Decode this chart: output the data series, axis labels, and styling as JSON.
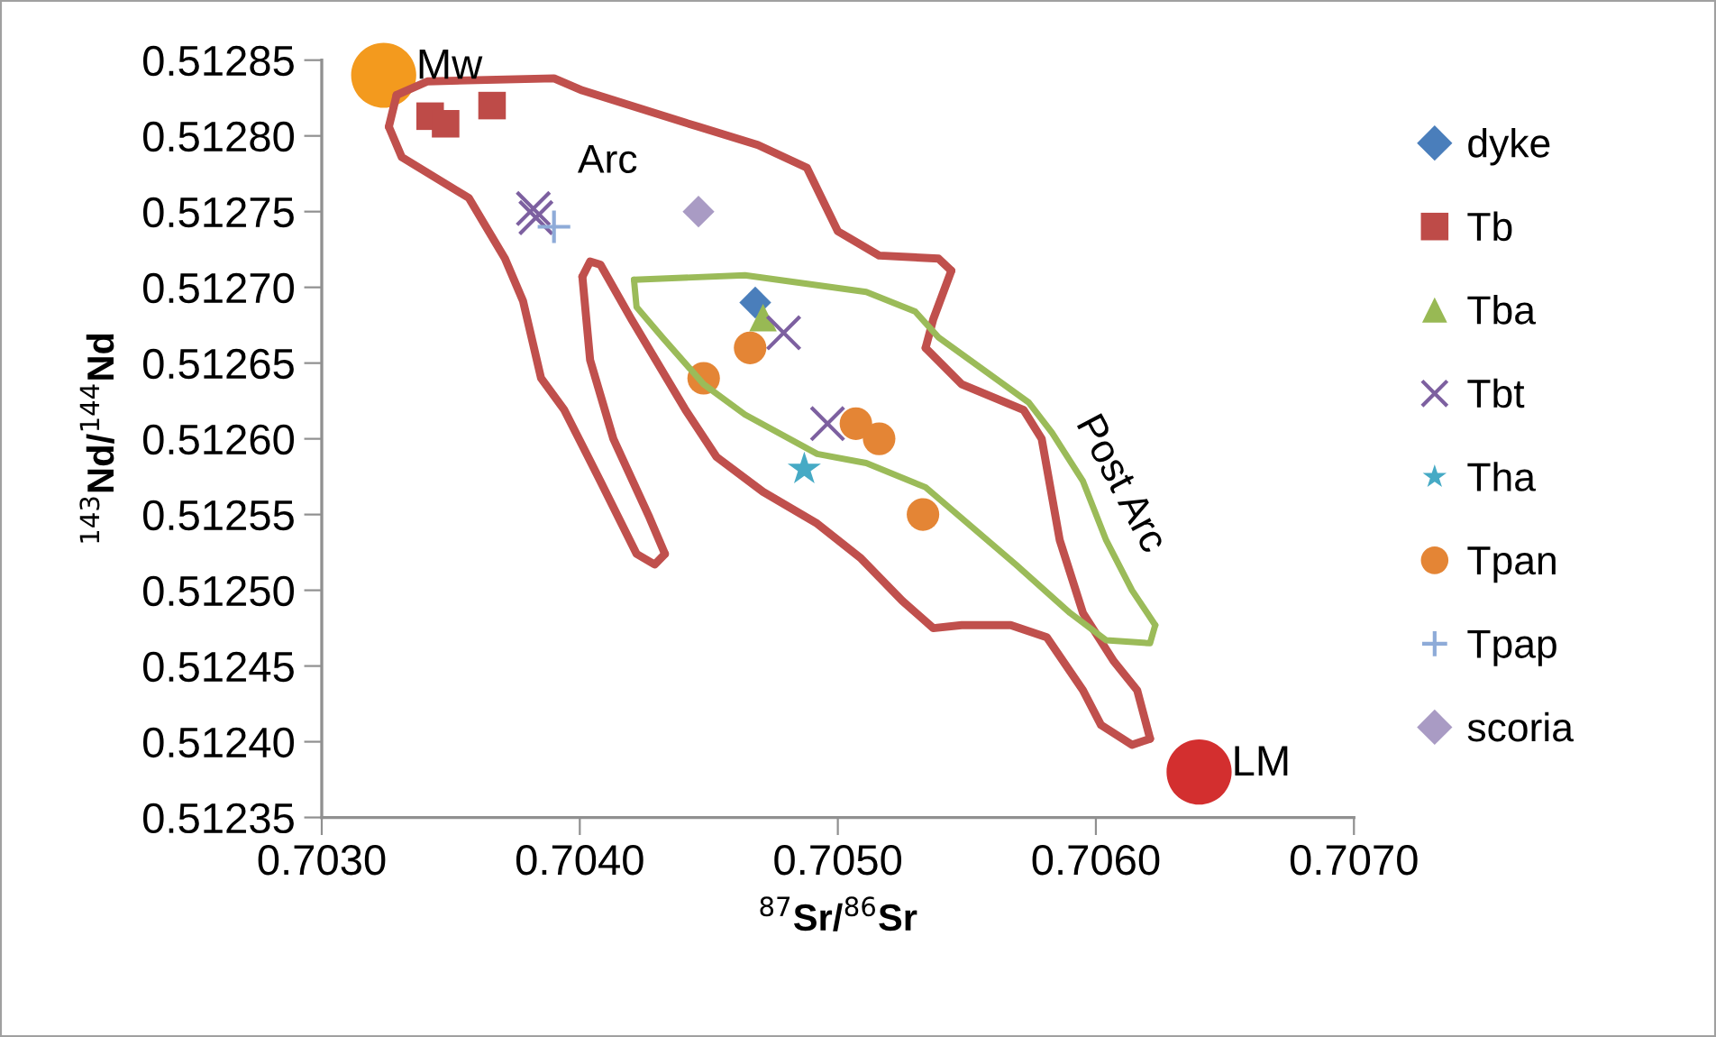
{
  "chart_data": {
    "type": "scatter",
    "xlabel": "$^{87}$Sr/$^{86}$Sr",
    "ylabel": "$^{143}$Nd/$^{144}$Nd",
    "xlim": [
      0.703,
      0.707
    ],
    "xticks": [
      {
        "value": 0.703,
        "label": "0.7030"
      },
      {
        "value": 0.704,
        "label": "0.7040"
      },
      {
        "value": 0.705,
        "label": "0.7050"
      },
      {
        "value": 0.706,
        "label": "0.7060"
      },
      {
        "value": 0.707,
        "label": "0.7070"
      }
    ],
    "ylim": [
      0.51235,
      0.51285
    ],
    "yticks": [
      {
        "value": 0.51235,
        "label": "0.51235"
      },
      {
        "value": 0.5124,
        "label": "0.51240"
      },
      {
        "value": 0.51245,
        "label": "0.51245"
      },
      {
        "value": 0.5125,
        "label": "0.51250"
      },
      {
        "value": 0.51255,
        "label": "0.51255"
      },
      {
        "value": 0.5126,
        "label": "0.51260"
      },
      {
        "value": 0.51265,
        "label": "0.51265"
      },
      {
        "value": 0.5127,
        "label": "0.51270"
      },
      {
        "value": 0.51275,
        "label": "0.51275"
      },
      {
        "value": 0.5128,
        "label": "0.51280"
      },
      {
        "value": 0.51285,
        "label": "0.51285"
      }
    ],
    "grid": false,
    "legend": "right",
    "annotations": [
      "Arc",
      "Post Arc",
      {
        "text": "Mw",
        "x": 0.70324,
        "y": 0.51284
      },
      {
        "text": "LM",
        "x": 0.7064,
        "y": 0.51238
      }
    ],
    "series": [
      {
        "type": "line",
        "color": "#c0504d",
        "marker": "none",
        "line_style": "solid",
        "x": [
          0.70329,
          0.70341,
          0.7039,
          0.70401,
          0.70446,
          0.70469,
          0.70488,
          0.705,
          0.70516,
          0.70539,
          0.70544
        ],
        "values": [
          0.512827,
          0.512836,
          0.512838,
          0.51283,
          0.512806,
          0.512794,
          0.512779,
          0.512737,
          0.512721,
          0.512719,
          0.512711
        ]
      },
      {
        "type": "line",
        "color": "#c0504d",
        "marker": "none",
        "line_style": "solid",
        "x": [
          0.70544,
          0.70537,
          0.70534
        ],
        "values": [
          0.512711,
          0.512679,
          0.51266
        ]
      },
      {
        "type": "line",
        "color": "#c0504d",
        "marker": "none",
        "line_style": "solid",
        "x": [
          0.70534,
          0.70548,
          0.70572,
          0.70579,
          0.70586,
          0.70595,
          0.70607,
          0.70616,
          0.70621
        ],
        "values": [
          0.51266,
          0.512636,
          0.512619,
          0.5126,
          0.512533,
          0.512485,
          0.512453,
          0.512434,
          0.512402
        ]
      },
      {
        "type": "line",
        "color": "#c0504d",
        "marker": "none",
        "line_style": "solid",
        "x": [
          0.70621,
          0.70614,
          0.70602,
          0.70595,
          0.70581,
          0.70567,
          0.70548,
          0.70537,
          0.70525,
          0.70509,
          0.70492,
          0.70471,
          0.70453,
          0.70441,
          0.7042,
          0.70408,
          0.70404,
          0.70401
        ],
        "values": [
          0.512402,
          0.512398,
          0.512411,
          0.512434,
          0.512469,
          0.512477,
          0.512477,
          0.512475,
          0.512493,
          0.512521,
          0.512544,
          0.512565,
          0.512588,
          0.512619,
          0.512679,
          0.512715,
          0.512717,
          0.512707
        ]
      },
      {
        "type": "line",
        "color": "#c0504d",
        "marker": "none",
        "line_style": "solid",
        "x": [
          0.70401,
          0.70404,
          0.70413,
          0.70427,
          0.70433
        ],
        "values": [
          0.512707,
          0.512652,
          0.5126,
          0.512548,
          0.512524
        ]
      },
      {
        "type": "line",
        "color": "#c0504d",
        "marker": "none",
        "line_style": "solid",
        "x": [
          0.70433,
          0.70429,
          0.70422,
          0.70408,
          0.70394,
          0.70385,
          0.70378,
          0.70371,
          0.70357,
          0.70331,
          0.70326
        ],
        "values": [
          0.512524,
          0.512517,
          0.512524,
          0.512572,
          0.512619,
          0.51264,
          0.512691,
          0.512719,
          0.512759,
          0.512786,
          0.512806
        ]
      },
      {
        "type": "line",
        "color": "#c0504d",
        "marker": "none",
        "line_style": "solid",
        "x": [
          0.70326,
          0.70329
        ],
        "values": [
          0.512806,
          0.512827
        ]
      },
      {
        "type": "line",
        "color": "#9bbb59",
        "marker": "none",
        "line_style": "solid",
        "x": [
          0.70421,
          0.70464,
          0.70511,
          0.7053,
          0.70539,
          0.70574,
          0.70583,
          0.70595,
          0.70604,
          0.70614,
          0.70623
        ],
        "values": [
          0.512705,
          0.512708,
          0.512697,
          0.512684,
          0.512667,
          0.512624,
          0.512604,
          0.512572,
          0.512533,
          0.5125,
          0.512477
        ]
      },
      {
        "type": "line",
        "color": "#9bbb59",
        "marker": "none",
        "line_style": "solid",
        "x": [
          0.70623,
          0.70621,
          0.70604,
          0.7059,
          0.70569,
          0.70534,
          0.70511,
          0.70492,
          0.70464,
          0.70448,
          0.70432,
          0.70422,
          0.70421
        ],
        "values": [
          0.512477,
          0.512465,
          0.512467,
          0.512485,
          0.512517,
          0.512568,
          0.512584,
          0.51259,
          0.512616,
          0.512636,
          0.512667,
          0.512687,
          0.512705
        ]
      },
      {
        "name": "dyke",
        "color": "#4a7ebb",
        "marker": "diamond",
        "x": [
          0.70468
        ],
        "values": [
          0.51269
        ]
      },
      {
        "name": "Tb",
        "color": "#be4b48",
        "marker": "square",
        "x": [
          0.70342,
          0.70348,
          0.70366
        ],
        "values": [
          0.512813,
          0.512808,
          0.51282
        ]
      },
      {
        "name": "Tba",
        "color": "#98b954",
        "marker": "triangle",
        "x": [
          0.70471
        ],
        "values": [
          0.51268
        ]
      },
      {
        "name": "Tbt",
        "color": "#7d60a0",
        "marker": "cross",
        "x": [
          0.70382,
          0.70383,
          0.70479,
          0.70496
        ],
        "values": [
          0.512752,
          0.512746,
          0.51267,
          0.51261
        ]
      },
      {
        "name": "Tha",
        "color": "#46aac5",
        "marker": "star",
        "x": [
          0.70487
        ],
        "values": [
          0.51258
        ]
      },
      {
        "name": "Tpan",
        "color": "#e48535",
        "marker": "circle",
        "x": [
          0.70466,
          0.70448,
          0.70507,
          0.70516,
          0.70533
        ],
        "values": [
          0.51266,
          0.51264,
          0.51261,
          0.5126,
          0.51255
        ]
      },
      {
        "name": "Tpap",
        "color": "#8eabd8",
        "marker": "plus",
        "x": [
          0.7039
        ],
        "values": [
          0.51274
        ]
      },
      {
        "name": "scoria",
        "color": "#a99bc4",
        "marker": "diamond",
        "x": [
          0.70446
        ],
        "values": [
          0.51275
        ]
      },
      {
        "color": "#f39a1e",
        "marker": "circle",
        "x": [
          0.70324
        ],
        "values": [
          0.51284
        ]
      },
      {
        "color": "#d32f2f",
        "marker": "circle",
        "x": [
          0.7064
        ],
        "values": [
          0.51238
        ]
      }
    ]
  }
}
